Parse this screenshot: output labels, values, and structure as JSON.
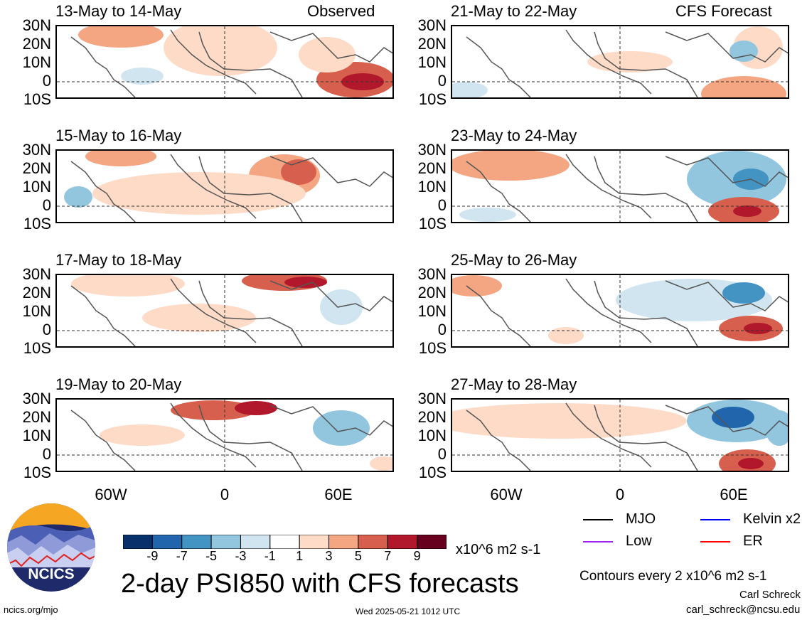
{
  "panels": [
    {
      "title": "13-May to 14-May",
      "label": "Observed"
    },
    {
      "title": "15-May to 16-May"
    },
    {
      "title": "17-May to 18-May"
    },
    {
      "title": "19-May to 20-May"
    },
    {
      "title": "21-May to 22-May",
      "label": "CFS Forecast"
    },
    {
      "title": "23-May to 24-May"
    },
    {
      "title": "25-May to 26-May"
    },
    {
      "title": "27-May to 28-May"
    }
  ],
  "axes": {
    "lat_labels": [
      "30N",
      "20N",
      "10N",
      "0",
      "10S"
    ],
    "lon_labels": [
      "60W",
      "0",
      "60E"
    ]
  },
  "colorbar": {
    "ticks": [
      "-9",
      "-7",
      "-5",
      "-3",
      "-1",
      "1",
      "3",
      "5",
      "7",
      "9"
    ],
    "colors": [
      "#08306b",
      "#2166ac",
      "#4393c3",
      "#92c5de",
      "#d1e5f0",
      "#ffffff",
      "#fddbc7",
      "#f4a582",
      "#d6604d",
      "#b2182b",
      "#67001f"
    ],
    "units": "x10^6 m2 s-1"
  },
  "legend": {
    "mjo": {
      "label": "MJO",
      "color": "#000000"
    },
    "kelvin": {
      "label": "Kelvin x2",
      "color": "#0000ff"
    },
    "low": {
      "label": "Low",
      "color": "#a020f0"
    },
    "er": {
      "label": "ER",
      "color": "#ff0000"
    }
  },
  "title": "2-day PSI850 with CFS forecasts",
  "contour_note": "Contours every 2 x10^6 m2 s-1",
  "author": "Carl Schreck",
  "email": "carl_schreck@ncsu.edu",
  "url": "ncics.org/mjo",
  "timestamp": "Wed 2025-05-21 1012 UTC",
  "logo_text": "NCICS"
}
